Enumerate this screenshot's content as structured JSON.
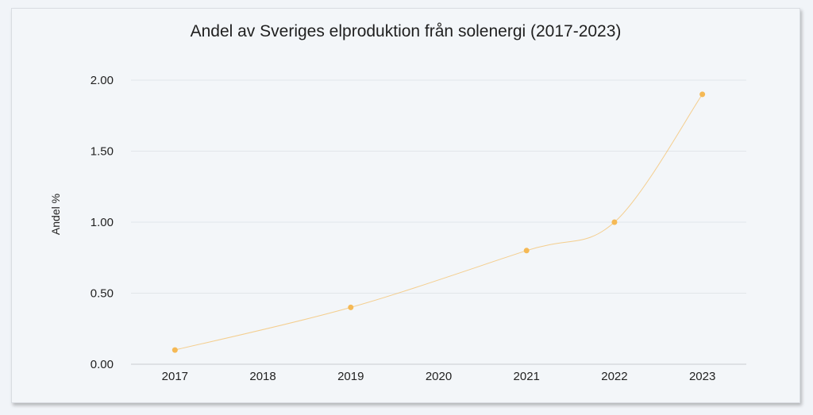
{
  "chart_data": {
    "type": "line",
    "title": "Andel av Sveriges elproduktion från solenergi (2017-2023)",
    "xlabel": "",
    "ylabel": "Andel %",
    "categories": [
      "2017",
      "2018",
      "2019",
      "2020",
      "2021",
      "2022",
      "2023"
    ],
    "series": [
      {
        "values": [
          0.1,
          null,
          0.4,
          null,
          0.8,
          1.0,
          1.9
        ],
        "color": "#f5b955"
      }
    ],
    "yticks": [
      "0.00",
      "0.50",
      "1.00",
      "1.50",
      "2.00"
    ],
    "ylim": [
      0,
      2
    ],
    "grid": true
  }
}
